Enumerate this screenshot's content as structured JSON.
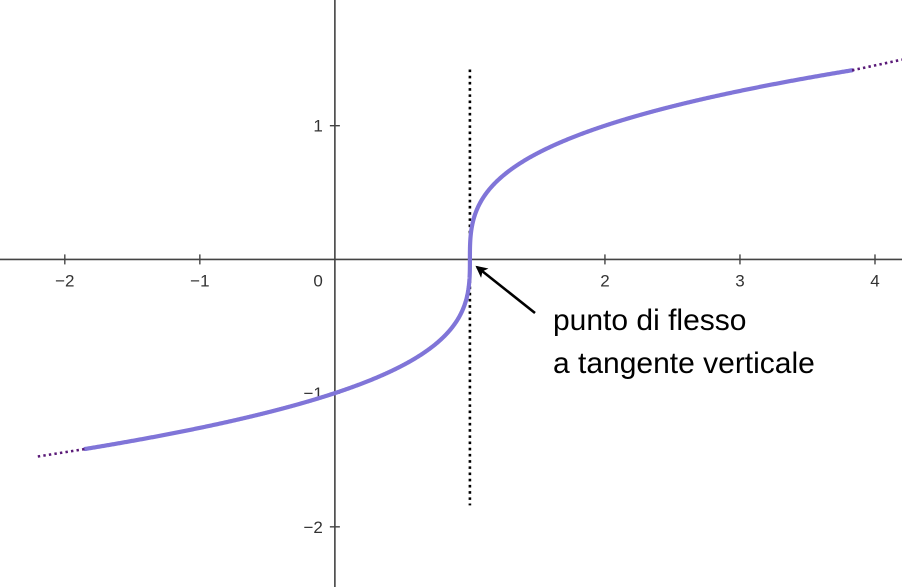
{
  "chart_data": {
    "type": "line",
    "function": "y = cbrt(x - 1)",
    "xlim": [
      -2.48,
      4.2
    ],
    "ylim": [
      -2.45,
      1.94
    ],
    "grid": false,
    "x_ticks": [
      {
        "value": -2,
        "label": "−2"
      },
      {
        "value": -1,
        "label": "−1"
      },
      {
        "value": 2,
        "label": "2"
      },
      {
        "value": 3,
        "label": "3"
      },
      {
        "value": 4,
        "label": "4"
      }
    ],
    "origin_label": "0",
    "y_ticks": [
      {
        "value": 1,
        "label": "1"
      },
      {
        "value": -1,
        "label": "−1"
      },
      {
        "value": -2,
        "label": "−2"
      }
    ],
    "series": [
      {
        "x": [
          -1.85,
          -1.5,
          -1,
          -0.5,
          0,
          0.25,
          0.5,
          0.75,
          0.875,
          0.95,
          0.99,
          1,
          1.01,
          1.05,
          1.125,
          1.25,
          1.5,
          2,
          2.5,
          3,
          3.5,
          3.83
        ],
        "y": [
          -1.418,
          -1.357,
          -1.26,
          -1.145,
          -1,
          -0.909,
          -0.794,
          -0.63,
          -0.5,
          -0.368,
          -0.215,
          0,
          0.215,
          0.368,
          0.5,
          0.63,
          0.794,
          1,
          1.145,
          1.26,
          1.357,
          1.414
        ],
        "color": "#8075d8"
      }
    ],
    "extensions": [
      {
        "x": [
          -2.2,
          -1.85
        ],
        "y": [
          -1.474,
          -1.418
        ],
        "color": "#5a1a78",
        "style": "dotted"
      },
      {
        "x": [
          3.83,
          4.2
        ],
        "y": [
          1.414,
          1.494
        ],
        "color": "#5a1a78",
        "style": "dotted"
      }
    ],
    "tangent_line": {
      "x": 1,
      "y_range": [
        -1.84,
        1.42
      ],
      "color": "#000000",
      "style": "dotted"
    },
    "annotation": {
      "lines": [
        "punto di flesso",
        "a tangente verticale"
      ],
      "arrow_to": [
        1,
        0
      ]
    }
  }
}
